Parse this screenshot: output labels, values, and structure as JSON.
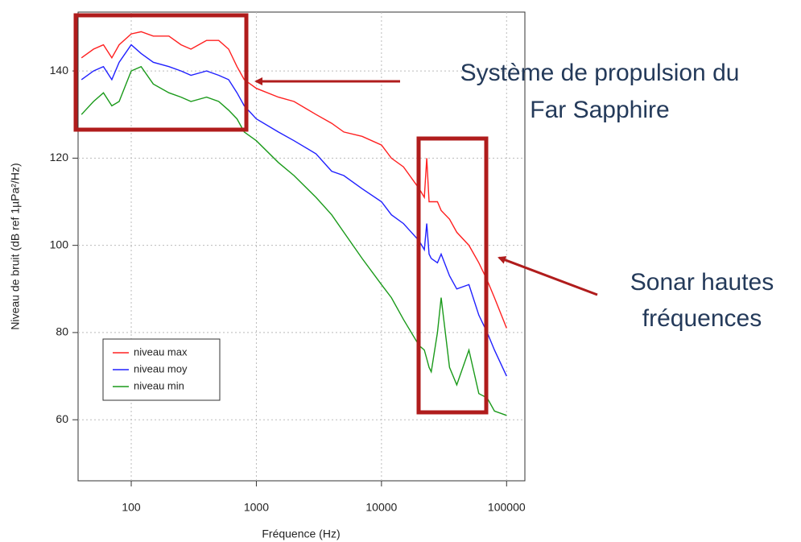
{
  "chart_data": {
    "type": "line",
    "x_label": "Fréquence (Hz)",
    "y_label": "Niveau de bruit (dB ref 1µPa²/Hz)",
    "log_x": true,
    "grid": true,
    "legend": "bottom-left",
    "xlim": [
      37.6,
      140000
    ],
    "xticks": [
      100,
      1000,
      10000,
      100000
    ],
    "ylim": [
      46,
      153.5
    ],
    "yticks": [
      60,
      80,
      100,
      120,
      140
    ],
    "x": [
      40,
      50,
      60,
      70,
      80,
      100,
      120,
      150,
      200,
      250,
      300,
      400,
      500,
      600,
      700,
      800,
      1000,
      1500,
      2000,
      3000,
      4000,
      5000,
      7000,
      10000,
      12000,
      15000,
      20000,
      22000,
      23000,
      24000,
      25000,
      28000,
      30000,
      35000,
      40000,
      50000,
      60000,
      70000,
      80000,
      100000
    ],
    "series": [
      {
        "name": "niveau max",
        "color": "#ff2020",
        "values": [
          143,
          145,
          146,
          143,
          146,
          148.5,
          149,
          148,
          148,
          146,
          145,
          147,
          147,
          145,
          141,
          138,
          136,
          134,
          133,
          130,
          128,
          126,
          125,
          123,
          120,
          118,
          113,
          111,
          120,
          110,
          110,
          110,
          108,
          106,
          103,
          100,
          96,
          92,
          88,
          81
        ]
      },
      {
        "name": "niveau moy",
        "color": "#2020ff",
        "values": [
          138,
          140,
          141,
          138,
          142,
          146,
          144,
          142,
          141,
          140,
          139,
          140,
          139,
          138,
          135,
          132,
          129,
          126,
          124,
          121,
          117,
          116,
          113,
          110,
          107,
          105,
          101,
          99,
          105,
          98,
          97,
          96,
          98,
          93,
          90,
          91,
          84,
          80,
          76,
          70
        ]
      },
      {
        "name": "niveau min",
        "color": "#1a9a1a",
        "values": [
          130,
          133,
          135,
          132,
          133,
          140,
          141,
          137,
          135,
          134,
          133,
          134,
          133,
          131,
          129,
          126,
          124,
          119,
          116,
          111,
          107,
          103,
          97,
          91,
          88,
          83,
          77,
          76,
          74,
          72,
          71,
          80,
          88,
          72,
          68,
          76,
          66,
          65,
          62,
          61
        ]
      }
    ],
    "annotations": [
      {
        "lines": [
          "Système de propulsion du",
          "Far Sapphire"
        ]
      },
      {
        "lines": [
          "Sonar hautes",
          "fréquences"
        ]
      }
    ]
  }
}
